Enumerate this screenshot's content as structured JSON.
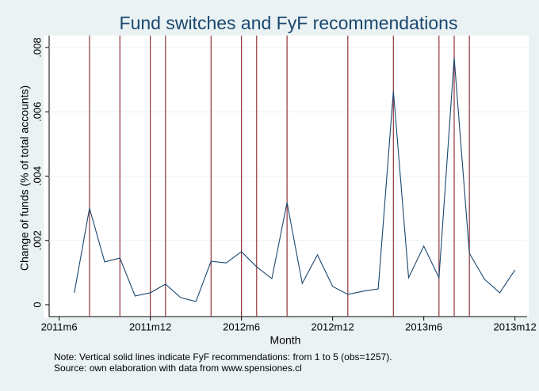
{
  "chart_data": {
    "type": "line",
    "title": "Fund switches and FyF recommendations",
    "x_label": "Month",
    "y_label": "Change of funds (% of total accounts)",
    "notes": [
      "Note: Vertical solid lines indicate FyF recommendations: from 1 to 5 (obs=1257).",
      "Source: own elaboration with data from www.spensiones.cl"
    ],
    "x": [
      618,
      619,
      620,
      621,
      622,
      623,
      624,
      625,
      626,
      627,
      628,
      629,
      630,
      631,
      632,
      633,
      634,
      635,
      636,
      637,
      638,
      639,
      640,
      641,
      642,
      643,
      644,
      645,
      646,
      647
    ],
    "series": [
      {
        "name": "Change of funds",
        "color": "#1a476f",
        "values": [
          0.00037,
          0.003,
          0.00133,
          0.00145,
          0.00027,
          0.00037,
          0.00064,
          0.00022,
          0.0001,
          0.00135,
          0.0013,
          0.00165,
          0.00118,
          0.00081,
          0.00318,
          0.00066,
          0.00155,
          0.00057,
          0.00032,
          0.00042,
          0.00049,
          0.00665,
          0.00084,
          0.00182,
          0.00084,
          0.00768,
          0.0016,
          0.00079,
          0.00037,
          0.00108
        ]
      }
    ],
    "recommendations": {
      "color": "#90353b",
      "x": [
        619,
        621,
        623,
        624,
        627,
        629,
        630,
        632,
        636,
        639,
        642,
        643,
        644
      ]
    },
    "xlim": [
      616.5,
      647.8
    ],
    "xticks": [
      {
        "value": 617,
        "label": "2011m6"
      },
      {
        "value": 623,
        "label": "2011m12"
      },
      {
        "value": 629,
        "label": "2012m6"
      },
      {
        "value": 635,
        "label": "2012m12"
      },
      {
        "value": 641,
        "label": "2013m6"
      },
      {
        "value": 647,
        "label": "2013m12"
      }
    ],
    "ylim": [
      -0.00037,
      0.00837
    ],
    "yticks": [
      0,
      {
        "value": 0.002,
        "label": ".002"
      },
      {
        "value": 0.004,
        "label": ".004"
      },
      {
        "value": 0.006,
        "label": ".006"
      },
      {
        "value": 0.008,
        "label": ".008"
      }
    ],
    "grid": true
  }
}
